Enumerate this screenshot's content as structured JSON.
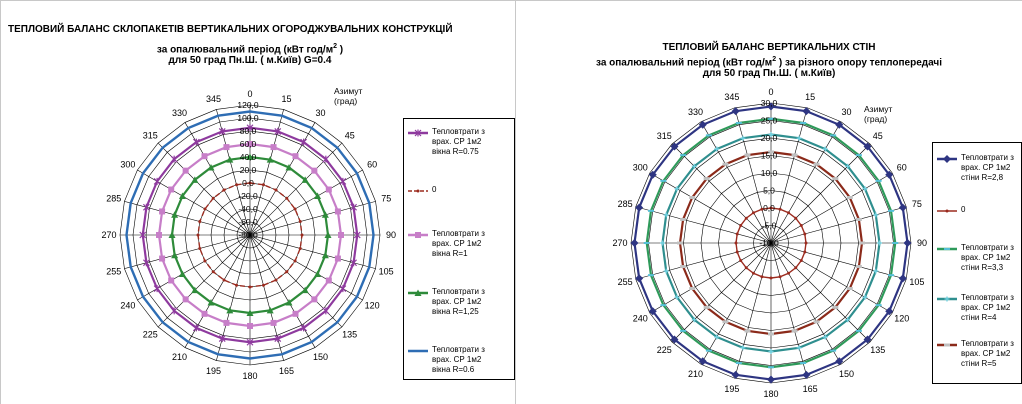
{
  "chart_data": [
    {
      "type": "radar",
      "title": "ТЕПЛОВИЙ БАЛАНС СКЛОПАКЕТІВ ВЕРТИКАЛЬНИХ ОГОРОДЖУВАЛЬНИХ КОНСТРУКЦІЙ",
      "subtitle_1": "за опалювальний період (кВт год/м",
      "subtitle_1_sup": "2",
      "subtitle_1_end": " )",
      "subtitle_2": "для 50 град Пн.Ш. ( м.Київ) G=0.4",
      "axis_title": "Азимут\n(град)",
      "angles": [
        "0",
        "15",
        "30",
        "45",
        "60",
        "75",
        "90",
        "105",
        "120",
        "135",
        "150",
        "165",
        "180",
        "195",
        "210",
        "225",
        "240",
        "255",
        "270",
        "285",
        "300",
        "315",
        "330",
        "345"
      ],
      "rlim": [
        -80,
        120
      ],
      "r_ticks": [
        "-80,0",
        "-60,0",
        "-40,0",
        "-20,0",
        "0,0",
        "20,0",
        "40,0",
        "60,0",
        "80,0",
        "100,0",
        "120,0"
      ],
      "grid": true,
      "legend_position": "right",
      "series": [
        {
          "name": "Тепловтрати з\nврах. СР 1м2\nвікна R=0.75",
          "color": "#8e3a9e",
          "marker": "star",
          "values": [
            85,
            85,
            85,
            85,
            85,
            85,
            85,
            85,
            85,
            85,
            85,
            85,
            85,
            85,
            85,
            85,
            85,
            85,
            85,
            85,
            85,
            85,
            85,
            85
          ]
        },
        {
          "name": "0",
          "color": "#9b2b1f",
          "marker": "dot",
          "dashed": true,
          "values": [
            0,
            0,
            0,
            0,
            0,
            0,
            0,
            0,
            0,
            0,
            0,
            0,
            0,
            0,
            0,
            0,
            0,
            0,
            0,
            0,
            0,
            0,
            0,
            0
          ]
        },
        {
          "name": "Тепловтрати з\nврах. СР 1м2\nвікна R=1",
          "color": "#c77ec8",
          "marker": "square",
          "values": [
            60,
            60,
            60,
            60,
            60,
            60,
            60,
            60,
            60,
            60,
            60,
            60,
            60,
            60,
            60,
            60,
            60,
            60,
            60,
            60,
            60,
            60,
            60,
            60
          ]
        },
        {
          "name": "Тепловтрати з\nврах. СР 1м2\nвікна R=1,25",
          "color": "#2e8b3a",
          "marker": "triangle",
          "values": [
            40,
            40,
            40,
            40,
            40,
            40,
            40,
            40,
            40,
            40,
            40,
            40,
            40,
            40,
            40,
            40,
            40,
            40,
            40,
            40,
            40,
            40,
            40,
            40
          ]
        },
        {
          "name": "Тепловтрати з\nврах. СР 1м2\nвікна R=0.6",
          "color": "#2e6db4",
          "marker": "none",
          "values": [
            110,
            110,
            110,
            110,
            110,
            110,
            110,
            110,
            110,
            110,
            110,
            110,
            110,
            110,
            110,
            110,
            110,
            110,
            110,
            110,
            110,
            110,
            110,
            110
          ]
        }
      ]
    },
    {
      "type": "radar",
      "title": "ТЕПЛОВИЙ БАЛАНС  ВЕРТИКАЛЬНИХ СТІН",
      "subtitle_1": "за опалювальний період (кВт год/м",
      "subtitle_1_sup": "2",
      "subtitle_1_end": " ) за різного опору теплопередачі",
      "subtitle_2": "для 50 град Пн.Ш. ( м.Київ)",
      "axis_title": "Азимут\n(град)",
      "angles": [
        "0",
        "15",
        "30",
        "45",
        "60",
        "75",
        "90",
        "105",
        "120",
        "135",
        "150",
        "165",
        "180",
        "195",
        "210",
        "225",
        "240",
        "255",
        "270",
        "285",
        "300",
        "315",
        "330",
        "345"
      ],
      "rlim": [
        -10,
        30
      ],
      "r_ticks": [
        "-10,0",
        "-5,0",
        "0,0",
        "5,0",
        "10,0",
        "15,0",
        "20,0",
        "25,0",
        "30,0"
      ],
      "grid": true,
      "legend_position": "right",
      "series": [
        {
          "name": "Тепловтрати з\nврах. СР 1м2\nстіни R=2,8",
          "color": "#2e3582",
          "marker": "diamond",
          "values": [
            29,
            29,
            29,
            29,
            29,
            29,
            29,
            29,
            29,
            29,
            29,
            29,
            29,
            29,
            29,
            29,
            29,
            29,
            29,
            29,
            29,
            29,
            29,
            29
          ]
        },
        {
          "name": "0",
          "color": "#9b2b1f",
          "marker": "dot",
          "values": [
            0,
            0,
            0,
            0,
            0,
            0,
            0,
            0,
            0,
            0,
            0,
            0,
            0,
            0,
            0,
            0,
            0,
            0,
            0,
            0,
            0,
            0,
            0,
            0
          ]
        },
        {
          "name": "Тепловтрати з\nврах. СР 1м2\nстіни R=3,3",
          "color": "#2e9a5a",
          "marker": "dash",
          "values": [
            25.5,
            25.5,
            25.5,
            25.5,
            25.5,
            25.5,
            25.5,
            25.5,
            25.5,
            25.5,
            25.5,
            25.5,
            25.5,
            25.5,
            25.5,
            25.5,
            25.5,
            25.5,
            25.5,
            25.5,
            25.5,
            25.5,
            25.5,
            25.5
          ]
        },
        {
          "name": "Тепловтрати з\nврах. СР 1м2\nстіни R=4",
          "color": "#2f8f8f",
          "marker": "cross",
          "values": [
            21,
            21,
            21,
            21,
            21,
            21,
            21,
            21,
            21,
            21,
            21,
            21,
            21,
            21,
            21,
            21,
            21,
            21,
            21,
            21,
            21,
            21,
            21,
            21
          ]
        },
        {
          "name": "Тепловтрати з\nврах. СР 1м2\nстіни R=5",
          "color": "#8b2a1a",
          "marker": "bar",
          "values": [
            16,
            16,
            16,
            16,
            16,
            16,
            16,
            16,
            16,
            16,
            16,
            16,
            16,
            16,
            16,
            16,
            16,
            16,
            16,
            16,
            16,
            16,
            16,
            16
          ]
        }
      ]
    }
  ]
}
